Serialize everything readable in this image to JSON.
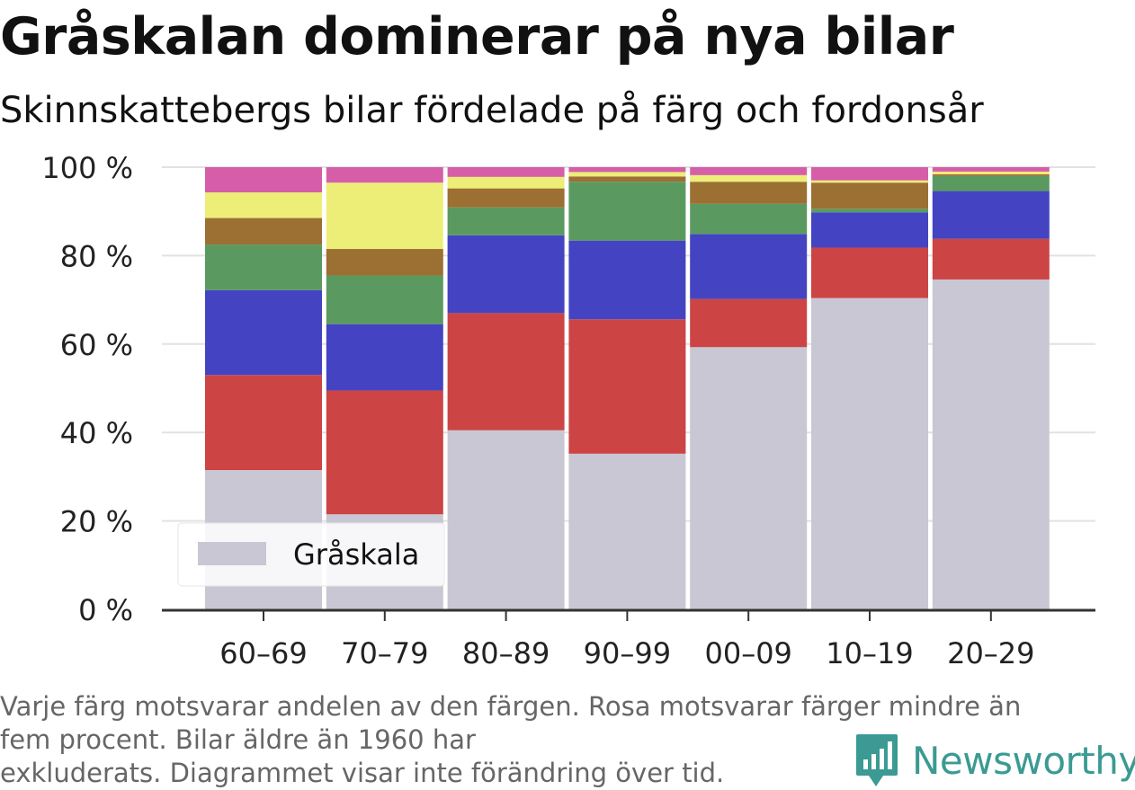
{
  "title": "Gråskalan dominerar på nya bilar",
  "subtitle": "Skinnskattebergs bilar fördelade på färg och fordonsår",
  "footnote": [
    "Varje färg motsvarar andelen av den färgen. Rosa motsvarar färger mindre än",
    "fem procent. Bilar äldre än 1960 har",
    "exkluderats. Diagrammet visar inte förändring över tid."
  ],
  "brand": {
    "name": "Newsworthy",
    "color": "#3b9a93"
  },
  "chart_data": {
    "type": "bar",
    "stacked": true,
    "categories": [
      "60–69",
      "70–79",
      "80–89",
      "90–99",
      "00–09",
      "10–19",
      "20–29"
    ],
    "ylim": [
      0,
      100
    ],
    "yticks": [
      0,
      20,
      40,
      60,
      80,
      100
    ],
    "ytick_labels": [
      "0 %",
      "20 %",
      "40 %",
      "60 %",
      "80 %",
      "100 %"
    ],
    "grid": true,
    "legend": {
      "placement": "bottom-left",
      "entries": [
        "Gråskala"
      ]
    },
    "series": [
      {
        "name": "Gråskala",
        "color": "#c9c7d3",
        "values": [
          31.5,
          21.5,
          40.5,
          35.2,
          59.3,
          70.4,
          74.6
        ]
      },
      {
        "color": "#cc4444",
        "values": [
          21.5,
          28.0,
          26.5,
          30.4,
          10.9,
          11.4,
          9.2
        ]
      },
      {
        "color": "#4444c2",
        "values": [
          19.2,
          15.0,
          17.6,
          17.8,
          14.7,
          8.0,
          10.8
        ]
      },
      {
        "color": "#5a9a60",
        "values": [
          10.3,
          11.0,
          6.3,
          13.3,
          6.8,
          0.8,
          3.4
        ]
      },
      {
        "color": "#9c6f33",
        "values": [
          6.0,
          6.0,
          4.3,
          1.2,
          5.0,
          5.9,
          0.4
        ]
      },
      {
        "color": "#ecee78",
        "values": [
          5.8,
          15.0,
          2.6,
          1.0,
          1.5,
          0.5,
          0.6
        ]
      },
      {
        "color": "#d65ea8",
        "values": [
          5.7,
          3.5,
          2.2,
          1.1,
          1.8,
          3.0,
          1.0
        ]
      }
    ]
  }
}
